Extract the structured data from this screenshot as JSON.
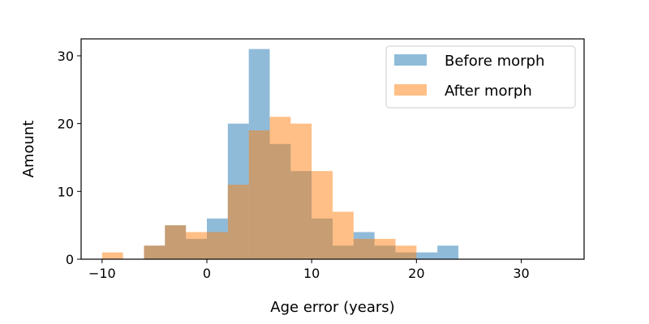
{
  "chart_data": {
    "type": "bar",
    "subtype": "overlapping-histogram",
    "title": "",
    "xlabel": "Age error (years)",
    "ylabel": "Amount",
    "xlim": [
      -12,
      36
    ],
    "ylim": [
      0,
      32.5
    ],
    "xticks": [
      -10,
      0,
      10,
      20,
      30
    ],
    "xtick_labels": [
      "−10",
      "0",
      "10",
      "20",
      "30"
    ],
    "yticks": [
      0,
      10,
      20,
      30
    ],
    "ytick_labels": [
      "0",
      "10",
      "20",
      "30"
    ],
    "grid": false,
    "legend_position": "top-right",
    "series": [
      {
        "name": "Before morph",
        "color": "#1f77b4",
        "opacity": 0.5,
        "bins": [
          {
            "x0": -6,
            "x1": -4,
            "count": 2
          },
          {
            "x0": -4,
            "x1": -2,
            "count": 5
          },
          {
            "x0": -2,
            "x1": 0,
            "count": 3
          },
          {
            "x0": 0,
            "x1": 2,
            "count": 6
          },
          {
            "x0": 2,
            "x1": 4,
            "count": 20
          },
          {
            "x0": 4,
            "x1": 6,
            "count": 31
          },
          {
            "x0": 6,
            "x1": 8,
            "count": 17
          },
          {
            "x0": 8,
            "x1": 10,
            "count": 13
          },
          {
            "x0": 10,
            "x1": 12,
            "count": 6
          },
          {
            "x0": 12,
            "x1": 14,
            "count": 2
          },
          {
            "x0": 14,
            "x1": 16,
            "count": 4
          },
          {
            "x0": 16,
            "x1": 18,
            "count": 2
          },
          {
            "x0": 18,
            "x1": 20,
            "count": 1
          },
          {
            "x0": 20,
            "x1": 22,
            "count": 1
          },
          {
            "x0": 22,
            "x1": 24,
            "count": 2
          }
        ]
      },
      {
        "name": "After morph",
        "color": "#ff7f0e",
        "opacity": 0.5,
        "bins": [
          {
            "x0": -10,
            "x1": -8,
            "count": 1
          },
          {
            "x0": -6,
            "x1": -4,
            "count": 2
          },
          {
            "x0": -4,
            "x1": -2,
            "count": 5
          },
          {
            "x0": -2,
            "x1": 0,
            "count": 4
          },
          {
            "x0": 0,
            "x1": 2,
            "count": 4
          },
          {
            "x0": 2,
            "x1": 4,
            "count": 11
          },
          {
            "x0": 4,
            "x1": 6,
            "count": 19
          },
          {
            "x0": 6,
            "x1": 8,
            "count": 21
          },
          {
            "x0": 8,
            "x1": 10,
            "count": 20
          },
          {
            "x0": 10,
            "x1": 12,
            "count": 13
          },
          {
            "x0": 12,
            "x1": 14,
            "count": 7
          },
          {
            "x0": 14,
            "x1": 16,
            "count": 3
          },
          {
            "x0": 16,
            "x1": 18,
            "count": 3
          },
          {
            "x0": 18,
            "x1": 20,
            "count": 2
          }
        ]
      }
    ]
  }
}
